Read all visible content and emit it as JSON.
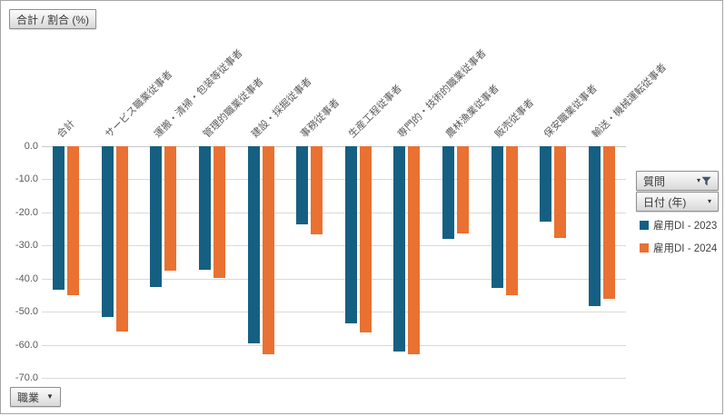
{
  "value_field_button": {
    "label": "合計 / 割合 (%)"
  },
  "axis_field_button": {
    "label": "職業"
  },
  "filter_field_buttons": {
    "question": {
      "label": "質問"
    },
    "date": {
      "label": "日付 (年)"
    }
  },
  "legend": {
    "items": [
      {
        "label": "雇用DI - 2023",
        "color": "#156082"
      },
      {
        "label": "雇用DI - 2024",
        "color": "#E97132"
      }
    ]
  },
  "colors": {
    "series1": "#156082",
    "series2": "#E97132",
    "gridline": "#d9d9d9",
    "tick_text": "#595959",
    "funnel_icon": "#44546A"
  },
  "chart_data": {
    "type": "bar",
    "orientation": "vertical",
    "title": "合計 / 割合 (%)",
    "xlabel": "職業",
    "ylabel": "合計 / 割合 (%)",
    "ylim": [
      -70,
      0
    ],
    "ytick_step": 10,
    "ytick_labels": [
      "0.0",
      "-10.0",
      "-20.0",
      "-30.0",
      "-40.0",
      "-50.0",
      "-60.0",
      "-70.0"
    ],
    "grid": true,
    "legend_position": "right",
    "categories": [
      "合計",
      "サービス職業従事者",
      "運搬・清掃・包装等従事者",
      "管理的職業従事者",
      "建設・採掘従事者",
      "事務従事者",
      "生産工程従事者",
      "専門的・技術的職業従事者",
      "農林漁業従事者",
      "販売従事者",
      "保安職業従事者",
      "輸送・機械運転従事者"
    ],
    "series": [
      {
        "name": "雇用DI - 2023",
        "color": "#156082",
        "values": [
          -43.3,
          -51.6,
          -42.5,
          -37.2,
          -59.6,
          -23.7,
          -53.6,
          -62.0,
          -28.1,
          -42.9,
          -22.9,
          -48.4
        ]
      },
      {
        "name": "雇用DI - 2024",
        "color": "#E97132",
        "values": [
          -45.1,
          -55.9,
          -37.7,
          -39.8,
          -62.9,
          -26.7,
          -56.2,
          -62.8,
          -26.3,
          -45.0,
          -27.7,
          -46.2
        ]
      }
    ]
  }
}
